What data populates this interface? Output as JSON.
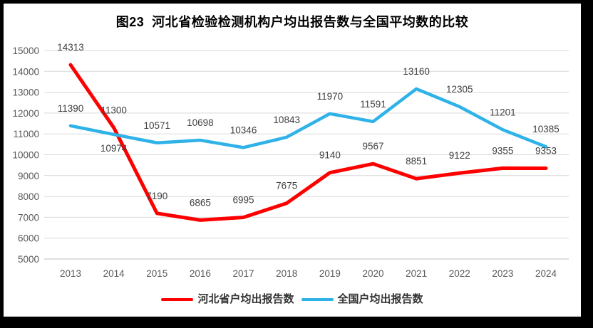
{
  "title": "图23  河北省检验检测机构户均出报告数与全国平均数的比较",
  "colors": {
    "hebei": "#fe0000",
    "national": "#2eb2e8",
    "grid": "#d9d9d9",
    "axis": "#bfbfbf",
    "data_label": "#404040",
    "tick_label": "#595959",
    "frame": "#000000",
    "background": "#ffffff"
  },
  "chart_data": {
    "type": "line",
    "title": "图23  河北省检验检测机构户均出报告数与全国平均数的比较",
    "x": [
      "2013",
      "2014",
      "2015",
      "2016",
      "2017",
      "2018",
      "2019",
      "2020",
      "2021",
      "2022",
      "2023",
      "2024"
    ],
    "series": [
      {
        "name": "河北省户均出报告数",
        "color_key": "hebei",
        "values": [
          14313,
          11300,
          7190,
          6865,
          6995,
          7675,
          9140,
          9567,
          8851,
          9122,
          9355,
          9353
        ],
        "labels_below_years": []
      },
      {
        "name": "全国户均出报告数",
        "color_key": "national",
        "values": [
          11390,
          10974,
          10571,
          10698,
          10346,
          10843,
          11970,
          11591,
          13160,
          12305,
          11201,
          10385
        ],
        "labels_below_years": [
          "2014"
        ]
      }
    ],
    "xlabel": "",
    "ylabel": "",
    "ylim": [
      5000,
      15000
    ],
    "ytick_step": 1000,
    "yticks": [
      5000,
      6000,
      7000,
      8000,
      9000,
      10000,
      11000,
      12000,
      13000,
      14000,
      15000
    ],
    "grid": "horizontal",
    "data_labels": true,
    "legend_position": "bottom"
  },
  "legend": {
    "items": [
      "河北省户均出报告数",
      "全国户均出报告数"
    ]
  }
}
